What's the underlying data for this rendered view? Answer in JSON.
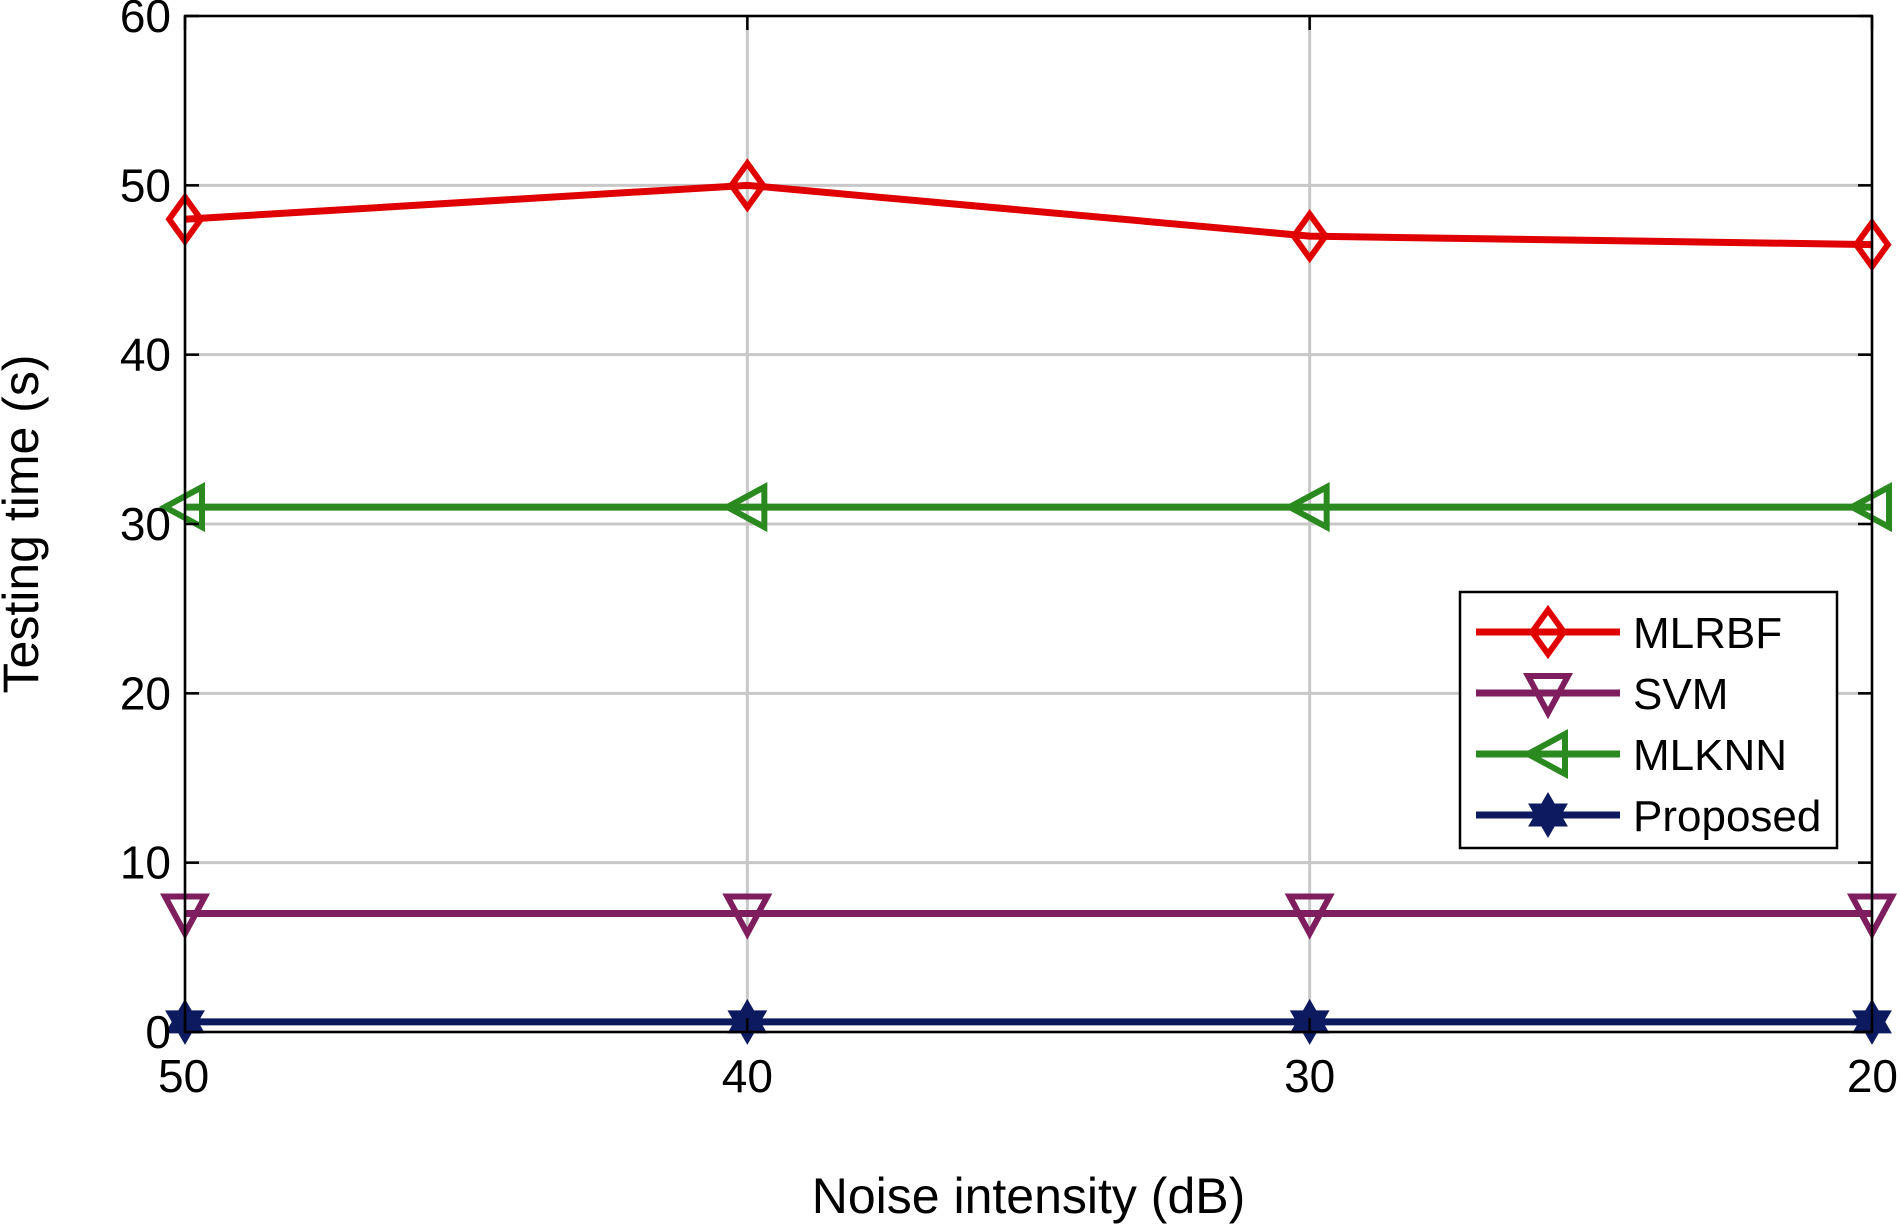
{
  "chart_data": {
    "type": "line",
    "title": "",
    "xlabel": "Noise intensity (dB)",
    "ylabel": "Testing time (s)",
    "x": [
      50,
      40,
      30,
      20
    ],
    "x_tick_labels": [
      "50",
      "40",
      "30",
      "20"
    ],
    "x_reversed": true,
    "xlim": [
      50,
      20
    ],
    "ylim": [
      0,
      60
    ],
    "y_ticks": [
      0,
      10,
      20,
      30,
      40,
      50,
      60
    ],
    "y_tick_labels": [
      "0",
      "10",
      "20",
      "30",
      "40",
      "50",
      "60"
    ],
    "grid": true,
    "legend_position": "right",
    "series": [
      {
        "name": "MLRBF",
        "values": [
          48,
          50,
          47,
          46.5
        ],
        "color": "#e00000",
        "marker": "diamond"
      },
      {
        "name": "SVM",
        "values": [
          7,
          7,
          7,
          7
        ],
        "color": "#7e1e5e",
        "marker": "triangle-down"
      },
      {
        "name": "MLKNN",
        "values": [
          31,
          31,
          31,
          31
        ],
        "color": "#2a8a1f",
        "marker": "triangle-left"
      },
      {
        "name": "Proposed",
        "values": [
          0.6,
          0.6,
          0.6,
          0.6
        ],
        "color": "#0d1a60",
        "marker": "hexagram"
      }
    ]
  }
}
